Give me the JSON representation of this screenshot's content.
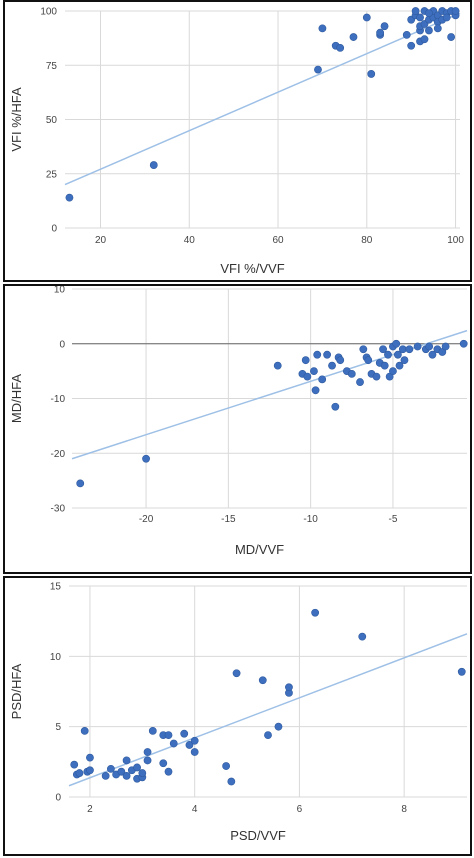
{
  "chart_data": [
    {
      "type": "scatter",
      "xlabel": "VFI %/VVF",
      "ylabel": "VFI %/HFA",
      "xlim": [
        12,
        101
      ],
      "ylim": [
        0,
        100
      ],
      "xticks": [
        20,
        40,
        60,
        80,
        100
      ],
      "yticks": [
        0,
        25,
        50,
        75,
        100
      ],
      "grid": true,
      "trendline": [
        [
          12,
          20
        ],
        [
          101,
          99
        ]
      ],
      "colors": {
        "points": "#3e6fbf",
        "trendline": "#9ec0e6",
        "grid": "#d9d9d9"
      },
      "points": [
        [
          13,
          14
        ],
        [
          32,
          29
        ],
        [
          69,
          73
        ],
        [
          70,
          92
        ],
        [
          73,
          84
        ],
        [
          74,
          83
        ],
        [
          77,
          88
        ],
        [
          80,
          97
        ],
        [
          81,
          71
        ],
        [
          83,
          89
        ],
        [
          83,
          90
        ],
        [
          84,
          93
        ],
        [
          89,
          89
        ],
        [
          90,
          84
        ],
        [
          90,
          96
        ],
        [
          91,
          98
        ],
        [
          91,
          100
        ],
        [
          92,
          86
        ],
        [
          92,
          91
        ],
        [
          92,
          93
        ],
        [
          92,
          97
        ],
        [
          93,
          100
        ],
        [
          93,
          94
        ],
        [
          93,
          87
        ],
        [
          94,
          91
        ],
        [
          94,
          96
        ],
        [
          95,
          97
        ],
        [
          95,
          100
        ],
        [
          96,
          98
        ],
        [
          96,
          95
        ],
        [
          97,
          96
        ],
        [
          97,
          100
        ],
        [
          98,
          99
        ],
        [
          98,
          97
        ],
        [
          99,
          88
        ],
        [
          99,
          100
        ],
        [
          100,
          98
        ],
        [
          100,
          100
        ],
        [
          96,
          92
        ],
        [
          94,
          99
        ]
      ]
    },
    {
      "type": "scatter",
      "xlabel": "MD/VVF",
      "ylabel": "MD/HFA",
      "xlim": [
        -24.5,
        -0.5
      ],
      "ylim": [
        -30,
        10
      ],
      "xticks": [
        -20,
        -15,
        -10,
        -5
      ],
      "yticks": [
        10,
        0,
        -10,
        -20,
        -30
      ],
      "grid": true,
      "trendline": [
        [
          -24.5,
          -21
        ],
        [
          -0.5,
          2.4
        ]
      ],
      "colors": {
        "points": "#3e6fbf",
        "trendline": "#9ec0e6",
        "grid": "#d9d9d9",
        "zero_line": "#666666"
      },
      "points": [
        [
          -24,
          -25.5
        ],
        [
          -20,
          -21
        ],
        [
          -12,
          -4
        ],
        [
          -10.5,
          -5.5
        ],
        [
          -10.3,
          -3
        ],
        [
          -10.2,
          -6
        ],
        [
          -9.8,
          -5
        ],
        [
          -9.7,
          -8.5
        ],
        [
          -9.6,
          -2
        ],
        [
          -9.3,
          -6.5
        ],
        [
          -9,
          -2
        ],
        [
          -8.7,
          -4
        ],
        [
          -8.5,
          -11.5
        ],
        [
          -8.3,
          -2.5
        ],
        [
          -8.2,
          -3
        ],
        [
          -7.8,
          -5
        ],
        [
          -7.5,
          -5.5
        ],
        [
          -7,
          -7
        ],
        [
          -6.8,
          -1
        ],
        [
          -6.6,
          -2.5
        ],
        [
          -6.5,
          -3
        ],
        [
          -6.3,
          -5.5
        ],
        [
          -6,
          -6
        ],
        [
          -5.8,
          -3.5
        ],
        [
          -5.6,
          -1
        ],
        [
          -5.5,
          -4
        ],
        [
          -5.3,
          -2
        ],
        [
          -5.2,
          -6
        ],
        [
          -5,
          -0.5
        ],
        [
          -5,
          -5
        ],
        [
          -4.8,
          0
        ],
        [
          -4.7,
          -2
        ],
        [
          -4.6,
          -4
        ],
        [
          -4.4,
          -1
        ],
        [
          -4.3,
          -3
        ],
        [
          -4,
          -1
        ],
        [
          -3.5,
          -0.5
        ],
        [
          -3,
          -1
        ],
        [
          -2.8,
          -0.5
        ],
        [
          -2.6,
          -2
        ],
        [
          -2.3,
          -1
        ],
        [
          -2,
          -1.5
        ],
        [
          -1.8,
          -0.5
        ],
        [
          -0.7,
          0
        ]
      ]
    },
    {
      "type": "scatter",
      "xlabel": "PSD/VVF",
      "ylabel": "PSD/HFA",
      "xlim": [
        1.6,
        9.2
      ],
      "ylim": [
        0,
        15
      ],
      "xticks": [
        2,
        4,
        6,
        8
      ],
      "yticks": [
        0,
        5,
        10,
        15
      ],
      "grid": true,
      "trendline": [
        [
          1.6,
          0.8
        ],
        [
          9.2,
          11.6
        ]
      ],
      "colors": {
        "points": "#3e6fbf",
        "trendline": "#9ec0e6",
        "grid": "#d9d9d9"
      },
      "points": [
        [
          1.7,
          2.3
        ],
        [
          1.75,
          1.6
        ],
        [
          1.8,
          1.7
        ],
        [
          1.9,
          4.7
        ],
        [
          1.95,
          1.8
        ],
        [
          2,
          2.8
        ],
        [
          2,
          1.9
        ],
        [
          2.3,
          1.5
        ],
        [
          2.4,
          2
        ],
        [
          2.5,
          1.6
        ],
        [
          2.6,
          1.8
        ],
        [
          2.7,
          2.6
        ],
        [
          2.7,
          1.5
        ],
        [
          2.8,
          1.9
        ],
        [
          2.9,
          2.1
        ],
        [
          2.9,
          1.3
        ],
        [
          3,
          1.4
        ],
        [
          3,
          1.7
        ],
        [
          3.1,
          2.6
        ],
        [
          3.1,
          3.2
        ],
        [
          3.2,
          4.7
        ],
        [
          3.4,
          2.4
        ],
        [
          3.4,
          4.4
        ],
        [
          3.5,
          4.4
        ],
        [
          3.5,
          1.8
        ],
        [
          3.6,
          3.8
        ],
        [
          3.8,
          4.5
        ],
        [
          3.9,
          3.7
        ],
        [
          4,
          3.2
        ],
        [
          4,
          4
        ],
        [
          4.6,
          2.2
        ],
        [
          4.7,
          1.1
        ],
        [
          4.8,
          8.8
        ],
        [
          5.3,
          8.3
        ],
        [
          5.4,
          4.4
        ],
        [
          5.6,
          5
        ],
        [
          5.8,
          7.4
        ],
        [
          5.8,
          7.8
        ],
        [
          6.3,
          13.1
        ],
        [
          7.2,
          11.4
        ],
        [
          9.1,
          8.9
        ]
      ]
    }
  ]
}
